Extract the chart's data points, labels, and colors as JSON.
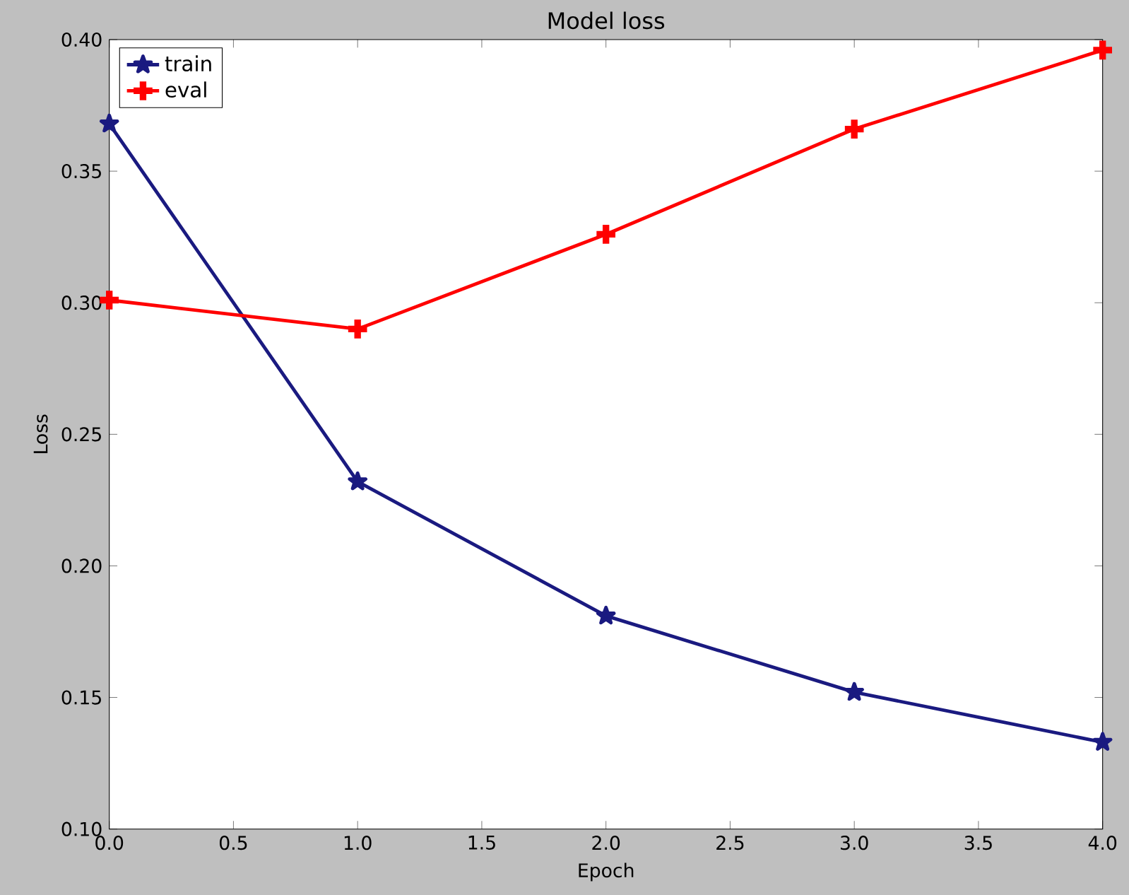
{
  "chart_data": {
    "type": "line",
    "title": "Model loss",
    "xlabel": "Epoch",
    "ylabel": "Loss",
    "x": [
      0,
      1,
      2,
      3,
      4
    ],
    "series": [
      {
        "name": "train",
        "color": "#1a1a80",
        "marker": "star",
        "values": [
          0.368,
          0.232,
          0.181,
          0.152,
          0.133
        ]
      },
      {
        "name": "eval",
        "color": "#ff0000",
        "marker": "cross",
        "values": [
          0.301,
          0.29,
          0.326,
          0.366,
          0.396
        ]
      }
    ],
    "xlim": [
      0,
      4
    ],
    "ylim": [
      0.1,
      0.4
    ],
    "xticks": [
      {
        "value": 0,
        "label": "0.0"
      },
      {
        "value": 0.5,
        "label": "0.5"
      },
      {
        "value": 1,
        "label": "1.0"
      },
      {
        "value": 1.5,
        "label": "1.5"
      },
      {
        "value": 2,
        "label": "2.0"
      },
      {
        "value": 2.5,
        "label": "2.5"
      },
      {
        "value": 3,
        "label": "3.0"
      },
      {
        "value": 3.5,
        "label": "3.5"
      },
      {
        "value": 4,
        "label": "4.0"
      }
    ],
    "yticks": [
      {
        "value": 0.1,
        "label": "0.10"
      },
      {
        "value": 0.15,
        "label": "0.15"
      },
      {
        "value": 0.2,
        "label": "0.20"
      },
      {
        "value": 0.25,
        "label": "0.25"
      },
      {
        "value": 0.3,
        "label": "0.30"
      },
      {
        "value": 0.35,
        "label": "0.35"
      },
      {
        "value": 0.4,
        "label": "0.40"
      }
    ],
    "legend": "top left",
    "line_style": "solid"
  }
}
